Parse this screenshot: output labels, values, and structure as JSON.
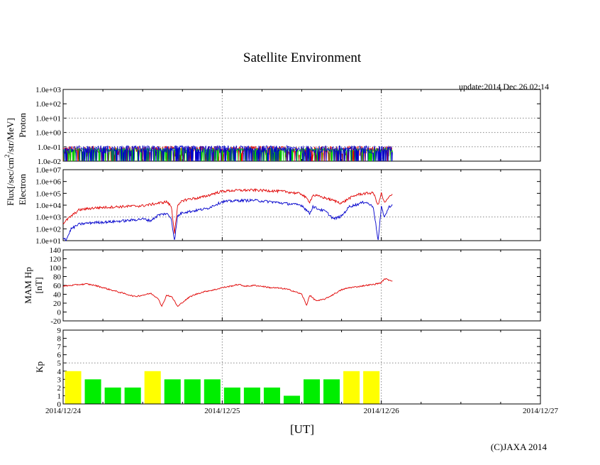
{
  "title": "Satellite Environment",
  "update": "update:2014 Dec 26 02:14",
  "copyright": "(C)JAXA 2014",
  "xlabel": "[UT]",
  "x_ticks": [
    "2014/12/24",
    "2014/12/25",
    "2014/12/26",
    "2014/12/27"
  ],
  "flux_label": {
    "main": "Flux[/sec/cm",
    "sup": "2",
    "rest": "/str/MeV]"
  },
  "colors": {
    "red": "#e00000",
    "blue": "#0000cc",
    "green": "#00cc00",
    "green_bar": "#00ee00",
    "yellow_bar": "#ffff00",
    "grid": "#888888"
  },
  "chart_data": [
    {
      "type": "line",
      "name": "proton",
      "ylabel": "Proton",
      "yscale": "log",
      "ylim": [
        0.01,
        1000
      ],
      "y_ticks": [
        "1.0e-02",
        "1.0e-01",
        "1.0e+00",
        "1.0e+01",
        "1.0e+02",
        "1.0e+03"
      ],
      "x_range_days": [
        0,
        3
      ],
      "series": [
        {
          "name": "proton-red",
          "color": "red",
          "baseline": 0.02,
          "noise_max": 0.11,
          "x": [
            0.0,
            2.07
          ]
        },
        {
          "name": "proton-green",
          "color": "green",
          "baseline": 0.05,
          "noise_max": 0.08,
          "x": [
            0.0,
            2.07
          ]
        },
        {
          "name": "proton-blue",
          "color": "blue",
          "baseline": 0.035,
          "noise_max": 0.12,
          "x": [
            0.0,
            2.07
          ]
        }
      ]
    },
    {
      "type": "line",
      "name": "electron",
      "ylabel": "Electron",
      "yscale": "log",
      "ylim": [
        10,
        10000000
      ],
      "y_ticks": [
        "1.0e+01",
        "1.0e+02",
        "1.0e+03",
        "1.0e+04",
        "1.0e+05",
        "1.0e+06",
        "1.0e+07"
      ],
      "series": [
        {
          "name": "electron-high",
          "color": "red",
          "x": [
            0.0,
            0.05,
            0.1,
            0.15,
            0.2,
            0.3,
            0.4,
            0.5,
            0.6,
            0.65,
            0.68,
            0.7,
            0.72,
            0.75,
            0.8,
            0.85,
            0.9,
            0.95,
            1.0,
            1.05,
            1.1,
            1.2,
            1.3,
            1.4,
            1.5,
            1.55,
            1.57,
            1.6,
            1.65,
            1.7,
            1.75,
            1.8,
            1.85,
            1.9,
            1.95,
            1.98,
            2.0,
            2.02,
            2.05,
            2.07
          ],
          "y": [
            300,
            1200,
            4000,
            5000,
            6000,
            7000,
            8000,
            9000,
            15000,
            20000,
            8000,
            50,
            8000,
            25000,
            35000,
            40000,
            60000,
            100000,
            150000,
            170000,
            180000,
            190000,
            170000,
            140000,
            90000,
            20000,
            70000,
            60000,
            40000,
            25000,
            15000,
            40000,
            80000,
            100000,
            110000,
            10000,
            100000,
            15000,
            50000,
            80000
          ]
        },
        {
          "name": "electron-low",
          "color": "blue",
          "x": [
            0.0,
            0.02,
            0.05,
            0.1,
            0.15,
            0.2,
            0.3,
            0.4,
            0.5,
            0.55,
            0.6,
            0.65,
            0.68,
            0.7,
            0.72,
            0.75,
            0.8,
            0.85,
            0.9,
            0.95,
            1.0,
            1.05,
            1.1,
            1.2,
            1.3,
            1.4,
            1.5,
            1.55,
            1.57,
            1.6,
            1.65,
            1.7,
            1.75,
            1.8,
            1.85,
            1.9,
            1.95,
            1.98,
            2.0,
            2.02,
            2.05,
            2.07
          ],
          "y": [
            20,
            12,
            100,
            250,
            300,
            350,
            400,
            500,
            700,
            500,
            1500,
            2000,
            800,
            10,
            1200,
            2500,
            3000,
            4000,
            5000,
            10000,
            20000,
            22000,
            25000,
            26000,
            20000,
            14000,
            10000,
            2000,
            8000,
            5000,
            3000,
            700,
            1200,
            8000,
            12000,
            20000,
            7000,
            10,
            7000,
            1000,
            8000,
            10000
          ]
        }
      ]
    },
    {
      "type": "line",
      "name": "magnetic",
      "ylabel": "MAM Hp [nT]",
      "ylim": [
        -20,
        140
      ],
      "y_ticks": [
        "-20",
        "0",
        "20",
        "40",
        "60",
        "80",
        "100",
        "120",
        "140"
      ],
      "series": [
        {
          "name": "hp",
          "color": "red",
          "x": [
            0.0,
            0.05,
            0.1,
            0.15,
            0.2,
            0.25,
            0.3,
            0.35,
            0.4,
            0.45,
            0.5,
            0.55,
            0.6,
            0.62,
            0.65,
            0.68,
            0.7,
            0.72,
            0.75,
            0.8,
            0.85,
            0.9,
            0.95,
            1.0,
            1.05,
            1.1,
            1.15,
            1.2,
            1.25,
            1.3,
            1.35,
            1.4,
            1.45,
            1.5,
            1.53,
            1.55,
            1.58,
            1.6,
            1.65,
            1.7,
            1.75,
            1.8,
            1.85,
            1.9,
            1.95,
            2.0,
            2.02,
            2.05,
            2.07
          ],
          "y": [
            58,
            60,
            62,
            63,
            60,
            55,
            50,
            45,
            40,
            35,
            38,
            42,
            30,
            12,
            38,
            35,
            25,
            12,
            22,
            35,
            42,
            47,
            50,
            55,
            58,
            62,
            58,
            60,
            58,
            55,
            54,
            52,
            47,
            40,
            15,
            38,
            28,
            25,
            30,
            40,
            50,
            55,
            57,
            60,
            62,
            66,
            75,
            72,
            70
          ]
        }
      ]
    },
    {
      "type": "bar",
      "name": "kp",
      "ylabel": "Kp",
      "ylim": [
        0,
        9
      ],
      "y_ticks": [
        "0",
        "1",
        "2",
        "3",
        "4",
        "5",
        "6",
        "7",
        "8",
        "9"
      ],
      "bar_width_days": 0.125,
      "yellow_threshold": 4,
      "values": [
        4,
        3,
        2,
        2,
        4,
        3,
        3,
        3,
        2,
        2,
        2,
        1,
        3,
        3,
        4,
        4
      ]
    }
  ]
}
